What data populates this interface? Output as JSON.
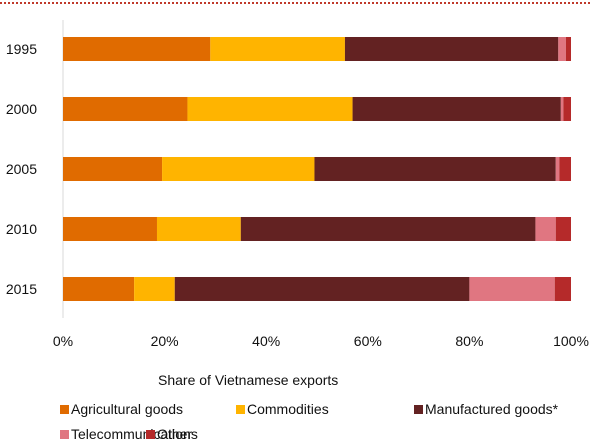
{
  "chart_data": {
    "type": "bar",
    "orientation": "horizontal",
    "stacked": true,
    "title": "",
    "categories": [
      "1995",
      "2000",
      "2005",
      "2010",
      "2015"
    ],
    "series": [
      {
        "name": "Agricultural goods",
        "color": "#E06B00",
        "values": [
          29,
          24.5,
          19.5,
          18.5,
          14
        ]
      },
      {
        "name": "Commodities",
        "color": "#FFB400",
        "values": [
          26.5,
          32.5,
          30,
          16.5,
          8
        ]
      },
      {
        "name": "Manufactured goods*",
        "color": "#632222",
        "values": [
          42,
          41,
          47.5,
          58,
          58
        ]
      },
      {
        "name": "Telecommunications",
        "color": "#E07681",
        "values": [
          1.5,
          0.5,
          0.7,
          4,
          16.8
        ]
      },
      {
        "name": "Other",
        "color": "#B52A2A",
        "values": [
          1,
          1.5,
          2.3,
          3,
          3.2
        ]
      }
    ],
    "xlim": [
      0,
      100
    ],
    "xticks": [
      0,
      20,
      40,
      60,
      80,
      100
    ],
    "xtick_labels": [
      "0%",
      "20%",
      "40%",
      "60%",
      "80%",
      "100%"
    ],
    "xlabel": "Share of Vietnamese exports",
    "ylabel": "",
    "grid": false,
    "legend_position": "bottom"
  }
}
